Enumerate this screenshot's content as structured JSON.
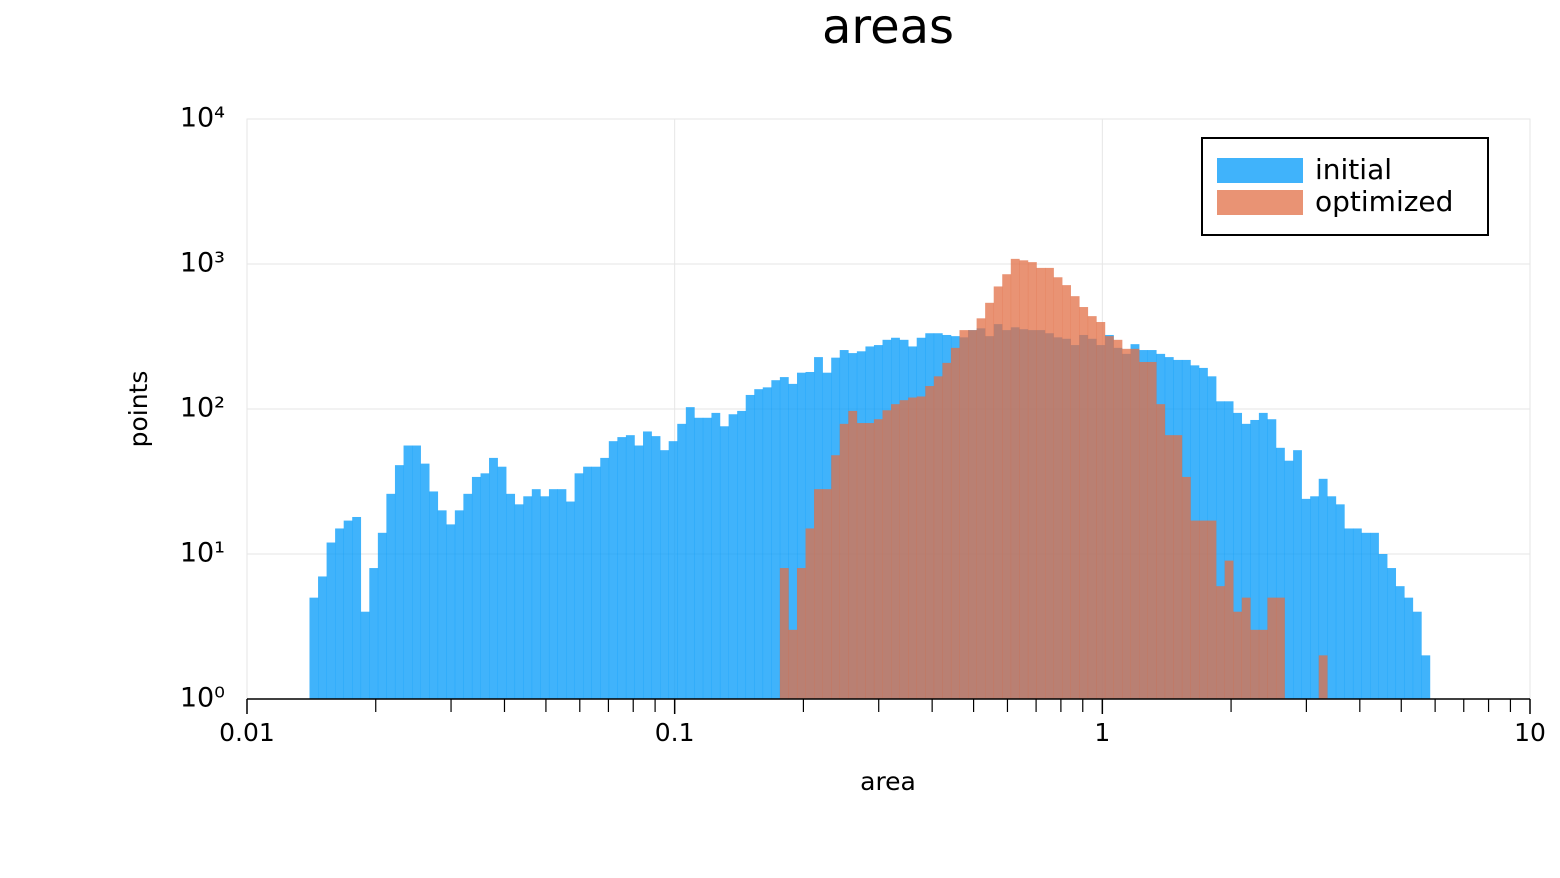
{
  "chart_data": {
    "type": "histogram",
    "title": "areas",
    "x_label": "area",
    "y_label": "points",
    "xscale": "log",
    "yscale": "log",
    "grid": true,
    "legend": "top right",
    "alpha": 0.75,
    "xlim": [
      0.01,
      10
    ],
    "ylim": [
      1,
      10000
    ],
    "xticks": [
      0.01,
      0.1,
      1,
      10
    ],
    "xminorticks": [
      0.02,
      0.03,
      0.04,
      0.05,
      0.06,
      0.07,
      0.08,
      0.09,
      0.2,
      0.3,
      0.4,
      0.5,
      0.6,
      0.7,
      0.8,
      0.9,
      2,
      3,
      4,
      5,
      6,
      7,
      8,
      9
    ],
    "yticks": [
      {
        "value": 1,
        "label": "10⁰"
      },
      {
        "value": 10,
        "label": "10¹"
      },
      {
        "value": 100,
        "label": "10²"
      },
      {
        "value": 1000,
        "label": "10³"
      },
      {
        "value": 10000,
        "label": "10⁴"
      }
    ],
    "bins": [
      0.014,
      0.01466,
      0.01535,
      0.01607,
      0.01683,
      0.01762,
      0.01845,
      0.01932,
      0.02023,
      0.02118,
      0.02218,
      0.02323,
      0.02432,
      0.02547,
      0.02667,
      0.02793,
      0.02924,
      0.03062,
      0.03206,
      0.03357,
      0.03516,
      0.03681,
      0.03855,
      0.04036,
      0.04227,
      0.04426,
      0.04634,
      0.04853,
      0.05082,
      0.05321,
      0.05572,
      0.05834,
      0.06109,
      0.06397,
      0.06699,
      0.07015,
      0.07345,
      0.07691,
      0.08054,
      0.08433,
      0.08831,
      0.09247,
      0.09683,
      0.1014,
      0.1062,
      0.1112,
      0.1164,
      0.1219,
      0.1276,
      0.1337,
      0.14,
      0.1466,
      0.1535,
      0.1607,
      0.1683,
      0.1762,
      0.1845,
      0.1932,
      0.2023,
      0.2118,
      0.2218,
      0.2323,
      0.2432,
      0.2547,
      0.2667,
      0.2793,
      0.2924,
      0.3062,
      0.3206,
      0.3357,
      0.3516,
      0.3681,
      0.3855,
      0.4036,
      0.4227,
      0.4426,
      0.4634,
      0.4853,
      0.5082,
      0.5321,
      0.5572,
      0.5834,
      0.6109,
      0.6397,
      0.6699,
      0.7015,
      0.7345,
      0.7691,
      0.8054,
      0.8433,
      0.8831,
      0.9247,
      0.9683,
      1.014,
      1.062,
      1.112,
      1.164,
      1.219,
      1.276,
      1.337,
      1.4,
      1.466,
      1.535,
      1.607,
      1.683,
      1.762,
      1.845,
      1.932,
      2.023,
      2.118,
      2.218,
      2.323,
      2.432,
      2.547,
      2.667,
      2.793,
      2.924,
      3.062,
      3.206,
      3.357,
      3.516,
      3.681,
      3.855,
      4.036,
      4.227,
      4.426,
      4.634,
      4.853,
      5.082,
      5.321,
      5.572,
      5.834
    ],
    "series": [
      {
        "name": "initial",
        "color": "#009af9",
        "values": [
          5,
          7,
          12,
          15,
          17,
          18,
          4,
          8,
          14,
          26,
          41,
          56,
          56,
          42,
          27,
          20,
          16,
          20,
          26,
          34,
          36,
          46,
          40,
          26,
          22,
          25,
          28,
          25,
          28,
          28,
          23,
          36,
          40,
          40,
          46,
          60,
          64,
          66,
          56,
          70,
          65,
          52,
          60,
          79,
          103,
          87,
          87,
          94,
          76,
          92,
          97,
          125,
          137,
          141,
          158,
          166,
          149,
          178,
          180,
          228,
          178,
          226,
          255,
          243,
          250,
          270,
          276,
          300,
          310,
          300,
          270,
          310,
          333,
          333,
          324,
          318,
          312,
          350,
          360,
          318,
          385,
          350,
          366,
          355,
          350,
          350,
          333,
          312,
          305,
          276,
          324,
          305,
          276,
          324,
          264,
          240,
          280,
          255,
          255,
          240,
          228,
          218,
          218,
          200,
          192,
          168,
          113,
          113,
          94,
          79,
          84,
          94,
          85,
          54,
          44,
          52,
          24,
          25,
          33,
          25,
          22,
          15,
          15,
          14,
          14,
          10,
          8,
          6,
          5,
          4,
          2
        ]
      },
      {
        "name": "optimized",
        "color": "#e26f46",
        "values": [
          0,
          0,
          0,
          0,
          0,
          0,
          0,
          0,
          0,
          0,
          0,
          0,
          0,
          0,
          0,
          0,
          0,
          0,
          0,
          0,
          0,
          0,
          0,
          0,
          0,
          0,
          0,
          0,
          0,
          0,
          0,
          0,
          0,
          0,
          0,
          0,
          0,
          0,
          0,
          0,
          0,
          0,
          0,
          0,
          0,
          0,
          0,
          0,
          0,
          0,
          0,
          0,
          0,
          0,
          0,
          8,
          3,
          8,
          15,
          28,
          28,
          48,
          79,
          97,
          80,
          80,
          85,
          98,
          108,
          115,
          120,
          122,
          144,
          168,
          208,
          264,
          350,
          350,
          422,
          540,
          700,
          850,
          1085,
          1060,
          1030,
          940,
          940,
          810,
          715,
          600,
          505,
          437,
          398,
          318,
          300,
          260,
          260,
          211,
          211,
          108,
          66,
          66,
          34,
          17,
          17,
          17,
          6,
          9,
          4,
          5,
          3,
          3,
          5,
          5,
          0,
          0,
          0,
          0,
          2,
          0,
          0,
          0,
          0,
          0,
          0,
          0,
          0,
          0,
          0,
          0,
          0
        ]
      }
    ]
  }
}
